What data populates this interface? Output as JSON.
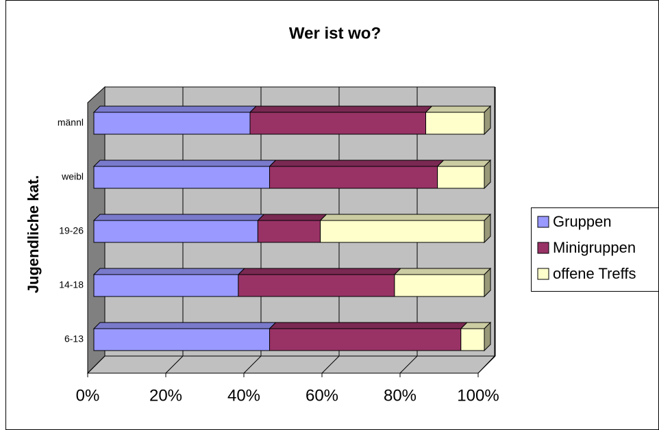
{
  "chart_data": {
    "type": "stacked_bar_horizontal",
    "title": "Wer ist wo?",
    "y_label": "Jugendliche kat.",
    "categories": [
      "6-13",
      "14-18",
      "19-26",
      "weibl",
      "männl"
    ],
    "series": [
      {
        "name": "Gruppen",
        "color": "#9999ff",
        "values": [
          45,
          37,
          42,
          45,
          40
        ]
      },
      {
        "name": "Minigruppen",
        "color": "#993366",
        "values": [
          49,
          40,
          16,
          43,
          45
        ]
      },
      {
        "name": "offene Treffs",
        "color": "#ffffcc",
        "values": [
          6,
          23,
          42,
          12,
          15
        ]
      }
    ],
    "xlim": [
      0,
      100
    ],
    "xticks": [
      {
        "value": 0,
        "label": "0%"
      },
      {
        "value": 20,
        "label": "20%"
      },
      {
        "value": 40,
        "label": "40%"
      },
      {
        "value": 60,
        "label": "60%"
      },
      {
        "value": 80,
        "label": "80%"
      },
      {
        "value": 100,
        "label": "100%"
      }
    ],
    "grid": true,
    "legend": "right"
  }
}
